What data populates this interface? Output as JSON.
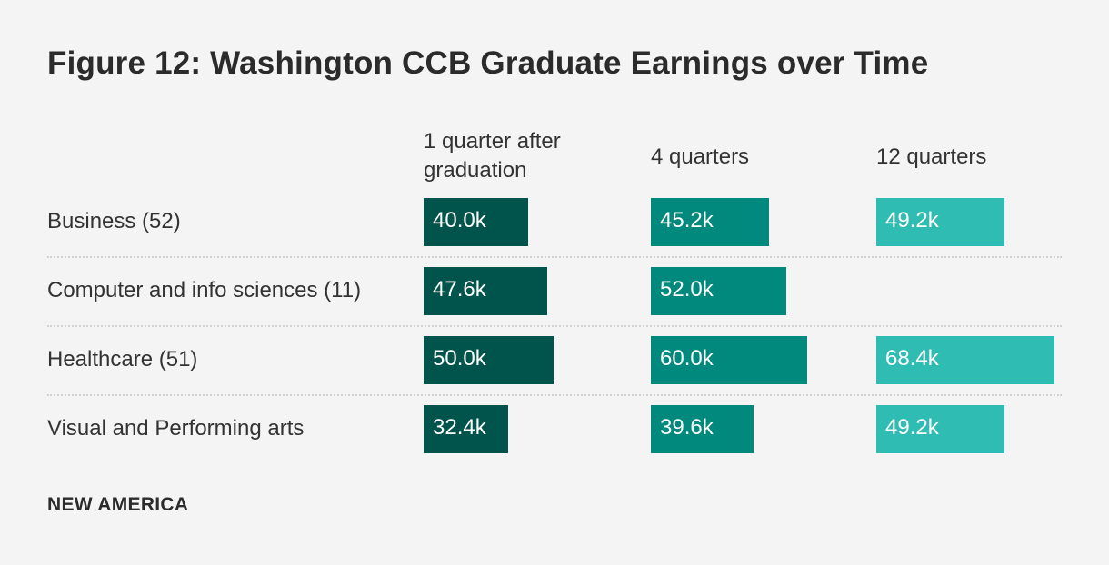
{
  "chart_data": {
    "type": "bar",
    "title": "Figure 12: Washington CCB Graduate Earnings over Time",
    "columns": [
      "1 quarter after graduation",
      "4 quarters",
      "12 quarters"
    ],
    "categories": [
      "Business (52)",
      "Computer and info sciences (11)",
      "Healthcare (51)",
      "Visual and Performing arts"
    ],
    "series": [
      {
        "name": "1 quarter after graduation",
        "values": [
          40.0,
          47.6,
          50.0,
          32.4
        ],
        "labels": [
          "40.0k",
          "47.6k",
          "50.0k",
          "32.4k"
        ],
        "color": "#00544b"
      },
      {
        "name": "4 quarters",
        "values": [
          45.2,
          52.0,
          60.0,
          39.6
        ],
        "labels": [
          "45.2k",
          "52.0k",
          "60.0k",
          "39.6k"
        ],
        "color": "#00897c"
      },
      {
        "name": "12 quarters",
        "values": [
          49.2,
          null,
          68.4,
          49.2
        ],
        "labels": [
          "49.2k",
          null,
          "68.4k",
          "49.2k"
        ],
        "color": "#2fbcb2"
      }
    ]
  },
  "footer": "NEW AMERICA"
}
